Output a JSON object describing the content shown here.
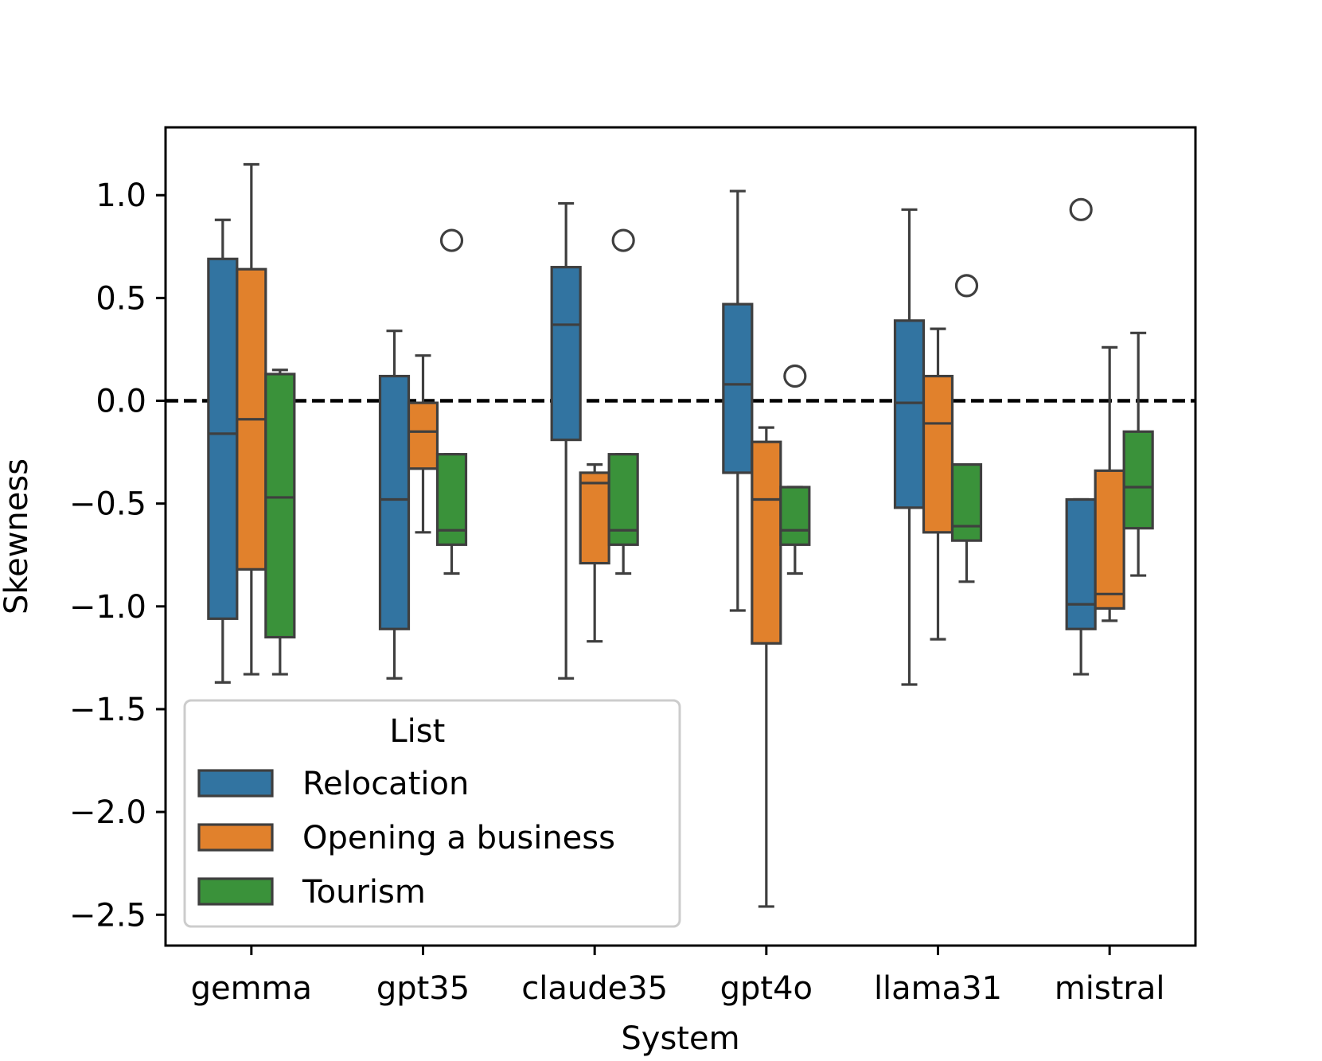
{
  "chart_data": {
    "type": "box",
    "title": "",
    "xlabel": "System",
    "ylabel": "Skewness",
    "ylim": [
      -2.65,
      1.33
    ],
    "yticks": [
      1.0,
      0.5,
      0.0,
      -0.5,
      -1.0,
      -1.5,
      -2.0,
      -2.5
    ],
    "ytick_labels": [
      "1.0",
      "0.5",
      "0.0",
      "−0.5",
      "−1.0",
      "−1.5",
      "−2.0",
      "−2.5"
    ],
    "categories": [
      "gemma",
      "gpt35",
      "claude35",
      "gpt4o",
      "llama31",
      "mistral"
    ],
    "reference_line": {
      "y": 0.0,
      "style": "dashed",
      "color": "#000000"
    },
    "legend": {
      "title": "List",
      "placement": "lower-left"
    },
    "series": [
      {
        "name": "Relocation",
        "color": "#3274a1",
        "boxes": [
          {
            "whisker_low": -1.37,
            "q1": -1.06,
            "median": -0.16,
            "q3": 0.69,
            "whisker_high": 0.88,
            "outliers": []
          },
          {
            "whisker_low": -1.35,
            "q1": -1.11,
            "median": -0.48,
            "q3": 0.12,
            "whisker_high": 0.34,
            "outliers": []
          },
          {
            "whisker_low": -1.35,
            "q1": -0.19,
            "median": 0.37,
            "q3": 0.65,
            "whisker_high": 0.96,
            "outliers": []
          },
          {
            "whisker_low": -1.02,
            "q1": -0.35,
            "median": 0.08,
            "q3": 0.47,
            "whisker_high": 1.02,
            "outliers": []
          },
          {
            "whisker_low": -1.38,
            "q1": -0.52,
            "median": -0.01,
            "q3": 0.39,
            "whisker_high": 0.93,
            "outliers": []
          },
          {
            "whisker_low": -1.33,
            "q1": -1.11,
            "median": -0.99,
            "q3": -0.48,
            "whisker_high": -0.48,
            "outliers": [
              0.93
            ]
          }
        ]
      },
      {
        "name": "Opening a business",
        "color": "#e1812c",
        "boxes": [
          {
            "whisker_low": -1.33,
            "q1": -0.82,
            "median": -0.09,
            "q3": 0.64,
            "whisker_high": 1.15,
            "outliers": []
          },
          {
            "whisker_low": -0.64,
            "q1": -0.33,
            "median": -0.15,
            "q3": -0.01,
            "whisker_high": 0.22,
            "outliers": []
          },
          {
            "whisker_low": -1.17,
            "q1": -0.79,
            "median": -0.4,
            "q3": -0.35,
            "whisker_high": -0.31,
            "outliers": []
          },
          {
            "whisker_low": -2.46,
            "q1": -1.18,
            "median": -0.48,
            "q3": -0.2,
            "whisker_high": -0.13,
            "outliers": []
          },
          {
            "whisker_low": -1.16,
            "q1": -0.64,
            "median": -0.11,
            "q3": 0.12,
            "whisker_high": 0.35,
            "outliers": []
          },
          {
            "whisker_low": -1.07,
            "q1": -1.01,
            "median": -0.94,
            "q3": -0.34,
            "whisker_high": 0.26,
            "outliers": []
          }
        ]
      },
      {
        "name": "Tourism",
        "color": "#3a923a",
        "boxes": [
          {
            "whisker_low": -1.33,
            "q1": -1.15,
            "median": -0.47,
            "q3": 0.13,
            "whisker_high": 0.15,
            "outliers": []
          },
          {
            "whisker_low": -0.84,
            "q1": -0.7,
            "median": -0.63,
            "q3": -0.26,
            "whisker_high": -0.26,
            "outliers": [
              0.78
            ]
          },
          {
            "whisker_low": -0.84,
            "q1": -0.7,
            "median": -0.63,
            "q3": -0.26,
            "whisker_high": -0.26,
            "outliers": [
              0.78
            ]
          },
          {
            "whisker_low": -0.84,
            "q1": -0.7,
            "median": -0.63,
            "q3": -0.42,
            "whisker_high": -0.42,
            "outliers": [
              0.12
            ]
          },
          {
            "whisker_low": -0.88,
            "q1": -0.68,
            "median": -0.61,
            "q3": -0.31,
            "whisker_high": -0.31,
            "outliers": [
              0.56
            ]
          },
          {
            "whisker_low": -0.85,
            "q1": -0.62,
            "median": -0.42,
            "q3": -0.15,
            "whisker_high": 0.33,
            "outliers": []
          }
        ]
      }
    ]
  }
}
